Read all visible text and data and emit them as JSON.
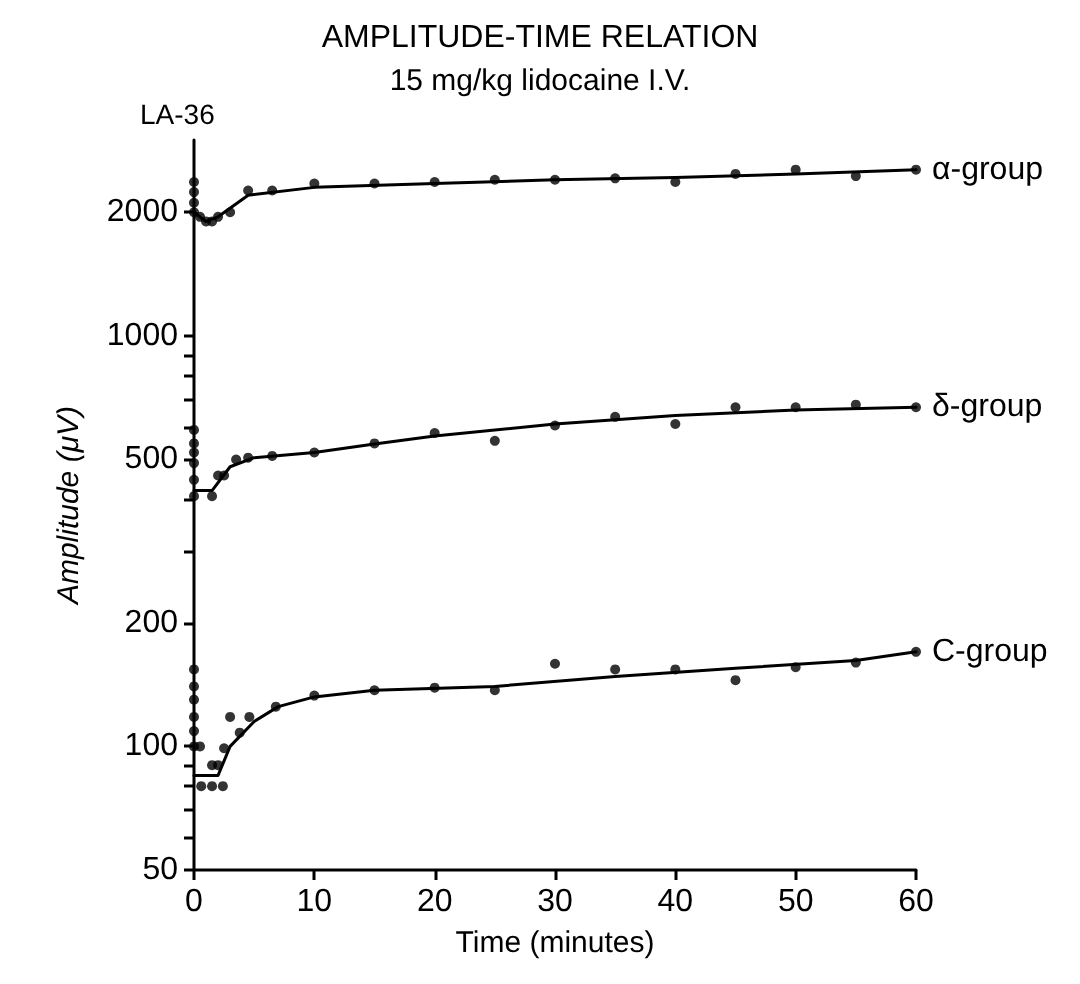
{
  "chart_data": {
    "type": "scatter",
    "title": "AMPLITUDE-TIME RELATION",
    "subtitle": "15 mg/kg lidocaine I.V.",
    "xlabel": "Time (minutes)",
    "ylabel": "Amplitude (μV)",
    "annotations": [
      "LA-36"
    ],
    "log": "y",
    "xlim": [
      0,
      60
    ],
    "xticks": [
      0,
      10,
      20,
      30,
      40,
      50,
      60
    ],
    "ylim": [
      50,
      3000
    ],
    "yticks": [
      50,
      {
        "value": 60,
        "label": null
      },
      {
        "value": 70,
        "label": null
      },
      {
        "value": 80,
        "label": null
      },
      {
        "value": 90,
        "label": null
      },
      100,
      200,
      {
        "value": 300,
        "label": null
      },
      {
        "value": 400,
        "label": null
      },
      500,
      {
        "value": 600,
        "label": null
      },
      {
        "value": 700,
        "label": null
      },
      {
        "value": 800,
        "label": null
      },
      {
        "value": 900,
        "label": null
      },
      1000,
      2000
    ],
    "marker": "circle",
    "series": [
      {
        "color": "#000000",
        "x": [
          0,
          0,
          0,
          0,
          0.5,
          1,
          1.5,
          2,
          3,
          4.5,
          6.5,
          10,
          15,
          20,
          25,
          30,
          35,
          40,
          45,
          50,
          55,
          60
        ],
        "values": [
          2370,
          2240,
          2110,
          2000,
          1950,
          1900,
          1900,
          1950,
          2000,
          2260,
          2260,
          2350,
          2350,
          2370,
          2400,
          2400,
          2420,
          2370,
          2480,
          2540,
          2450,
          2540
        ]
      },
      {
        "color": "#000000",
        "x": [
          0,
          0,
          0,
          0,
          0,
          0,
          1.5,
          2.5,
          2,
          3.5,
          4.5,
          6.5,
          10,
          15,
          20,
          25,
          30,
          35,
          40,
          45,
          50,
          55,
          60
        ],
        "values": [
          590,
          547,
          520,
          490,
          446,
          407,
          407,
          457,
          457,
          500,
          505,
          510,
          520,
          547,
          580,
          555,
          605,
          635,
          610,
          670,
          670,
          680,
          670
        ]
      },
      {
        "color": "#000000",
        "x": [
          0,
          0,
          0,
          0,
          0,
          0,
          0.5,
          1.5,
          1.5,
          0.6,
          2,
          2.4,
          2.5,
          3,
          3.8,
          4.6,
          6.8,
          10,
          15,
          20,
          25,
          30,
          35,
          40,
          45,
          50,
          55,
          60
        ],
        "values": [
          154,
          140,
          130,
          118,
          109,
          100,
          100,
          90,
          80,
          80,
          90,
          80,
          99,
          118,
          108,
          118,
          125,
          133,
          137,
          139,
          137,
          159,
          154,
          154,
          145,
          156,
          160,
          170
        ]
      },
      {
        "type": "line",
        "name": "α-group",
        "color": "#000000",
        "marker": "none",
        "x": [
          0,
          1,
          2,
          4.5,
          10,
          20,
          30,
          40,
          50,
          60
        ],
        "values": [
          2000,
          1900,
          1950,
          2200,
          2300,
          2350,
          2400,
          2430,
          2480,
          2540
        ]
      },
      {
        "type": "line",
        "name": "δ-group",
        "color": "#000000",
        "marker": "none",
        "x": [
          0,
          1.5,
          3,
          5,
          10,
          15,
          20,
          30,
          40,
          50,
          60
        ],
        "values": [
          420,
          420,
          480,
          505,
          520,
          545,
          570,
          610,
          640,
          660,
          670
        ]
      },
      {
        "type": "line",
        "name": "C-group",
        "color": "#000000",
        "marker": "none",
        "x": [
          0,
          2,
          3,
          5,
          7,
          10,
          15,
          25,
          35,
          45,
          55,
          60
        ],
        "values": [
          85,
          85,
          100,
          115,
          125,
          132,
          137,
          140,
          148,
          155,
          162,
          170
        ]
      }
    ]
  }
}
